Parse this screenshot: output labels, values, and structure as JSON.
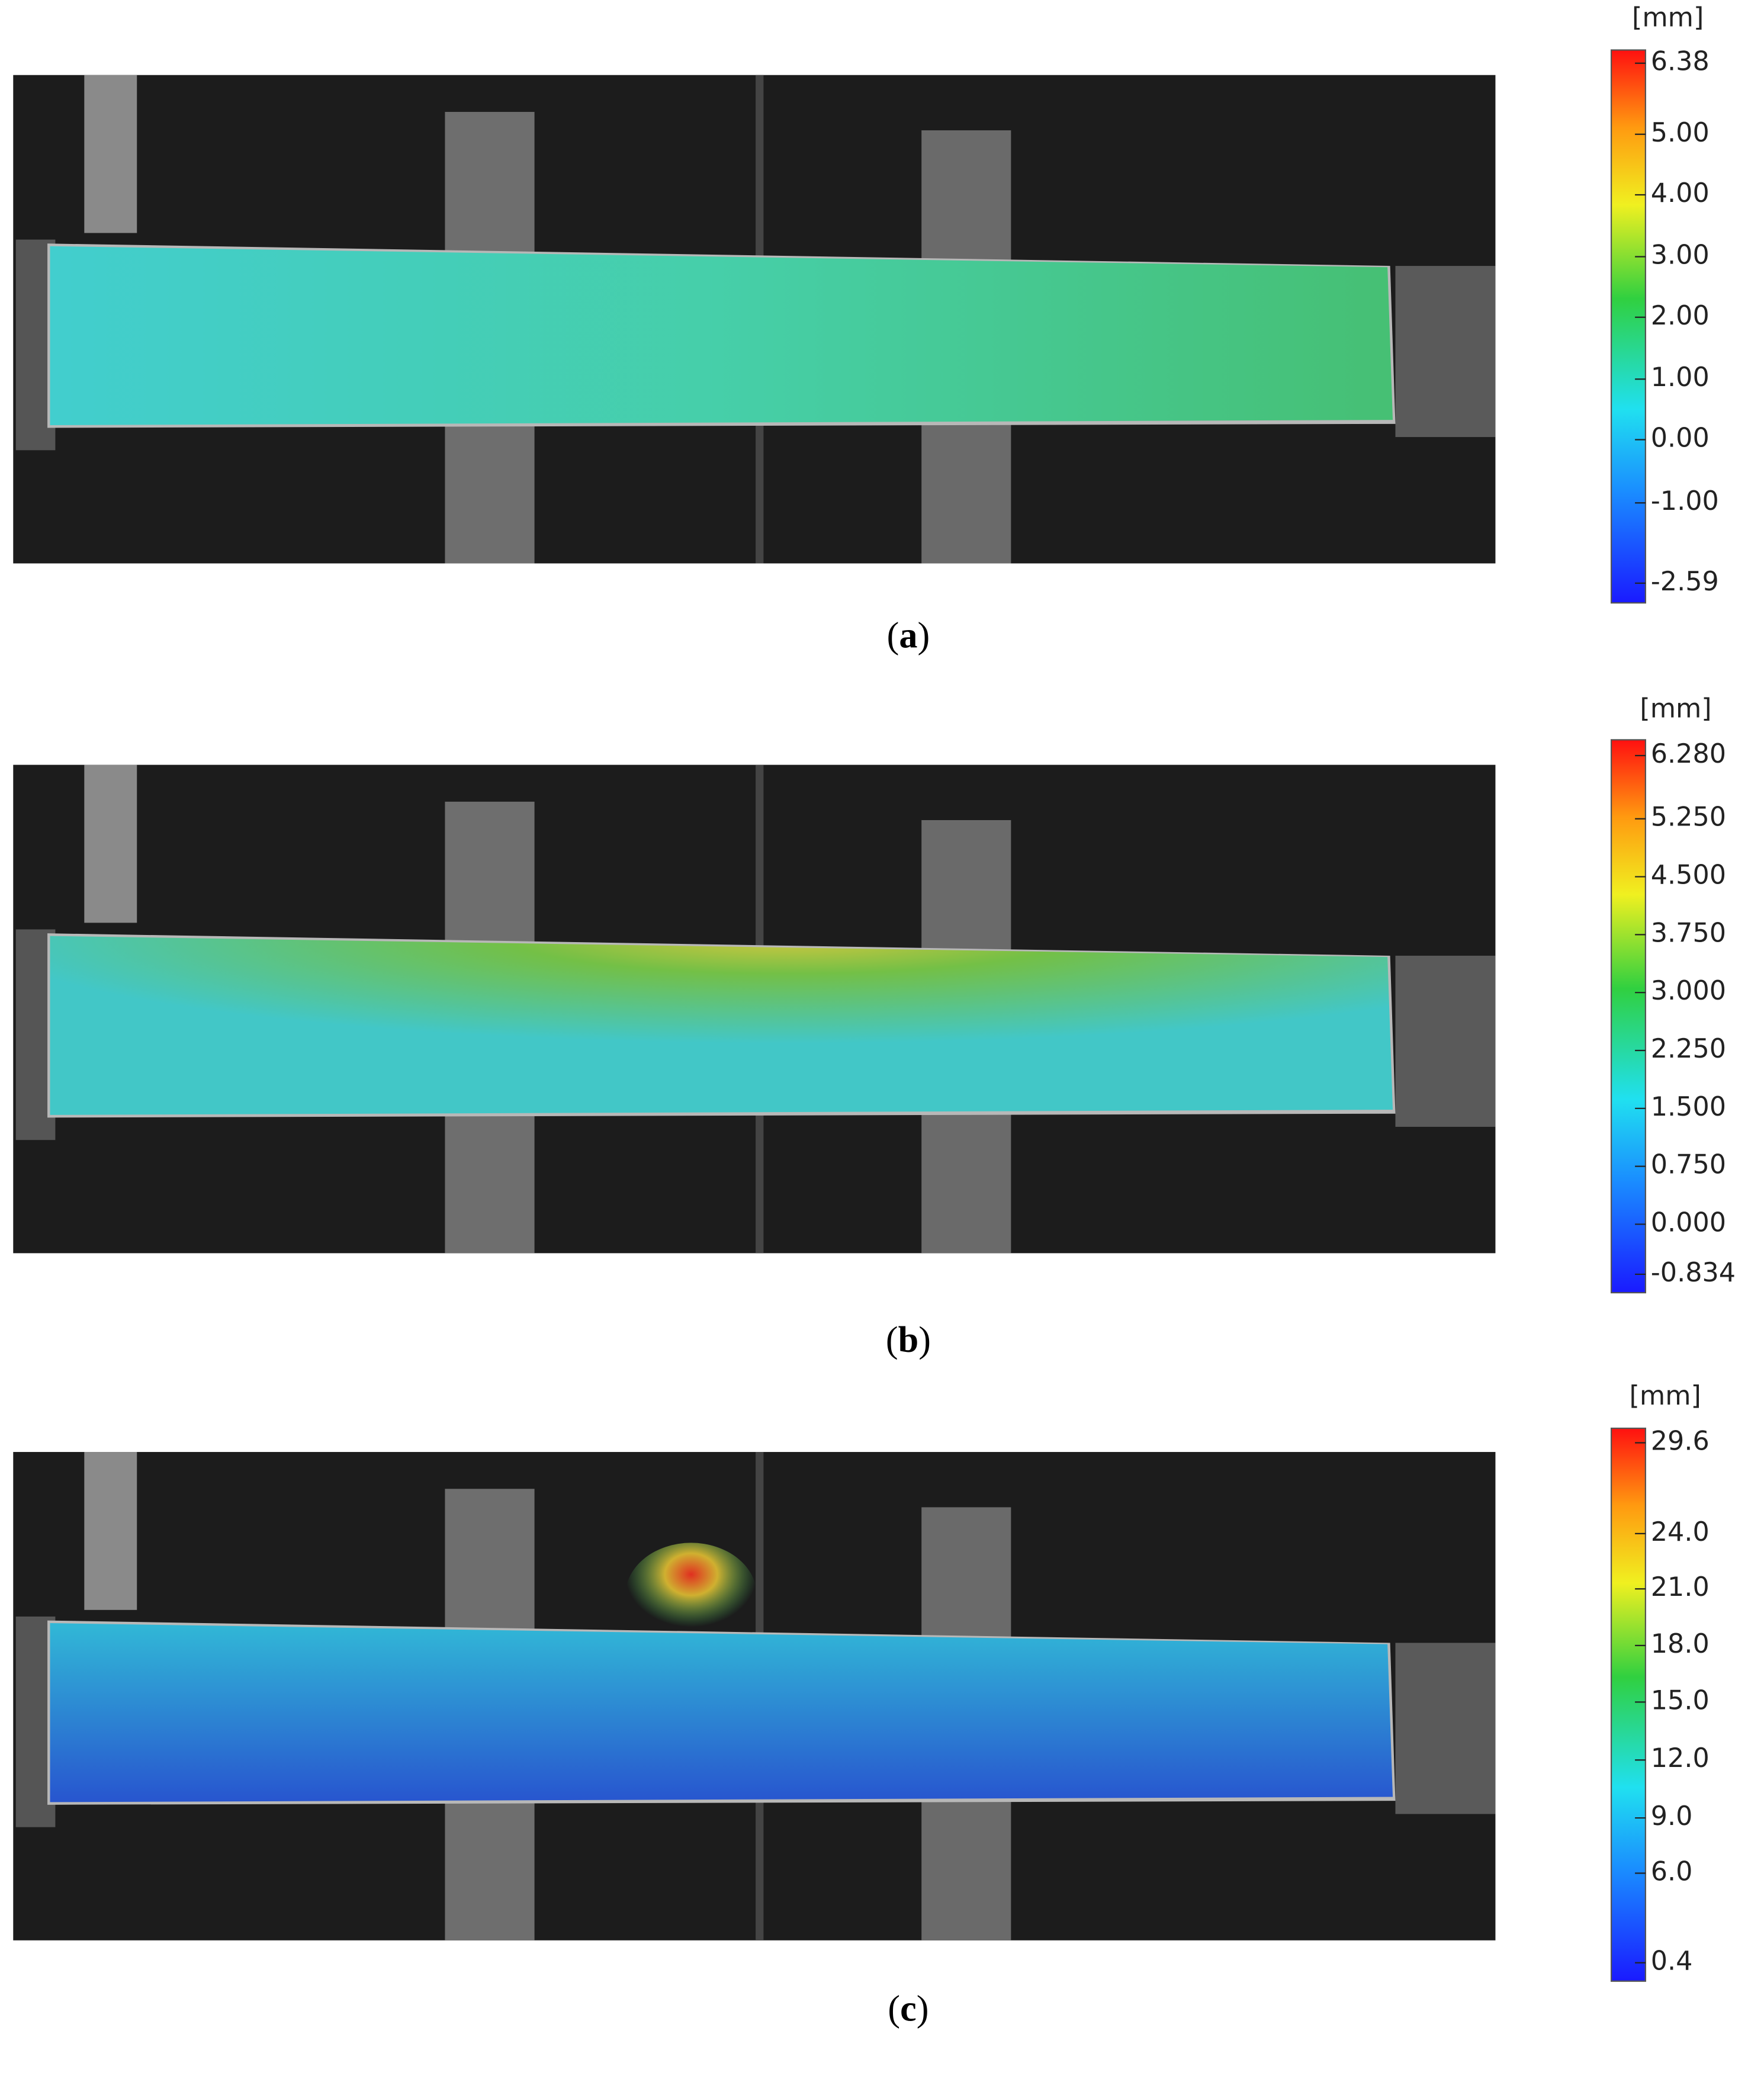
{
  "panels": [
    {
      "caption": {
        "open": "(",
        "letter": "a",
        "close": ")"
      },
      "colorbar": {
        "unit": "[mm]",
        "ticks": [
          "6.38",
          "5.00",
          "4.00",
          "3.00",
          "2.00",
          "1.00",
          "0.00",
          "-1.00",
          "-2.59"
        ]
      }
    },
    {
      "caption": {
        "open": "(",
        "letter": "b",
        "close": ")"
      },
      "colorbar": {
        "unit": "[mm]",
        "ticks": [
          "6.280",
          "5.250",
          "4.500",
          "3.750",
          "3.000",
          "2.250",
          "1.500",
          "0.750",
          "0.000",
          "-0.834"
        ]
      }
    },
    {
      "caption": {
        "open": "(",
        "letter": "c",
        "close": ")"
      },
      "colorbar": {
        "unit": "[mm]",
        "ticks": [
          "29.6",
          "24.0",
          "21.0",
          "18.0",
          "15.0",
          "12.0",
          "9.0",
          "6.0",
          "0.4"
        ]
      }
    }
  ]
}
